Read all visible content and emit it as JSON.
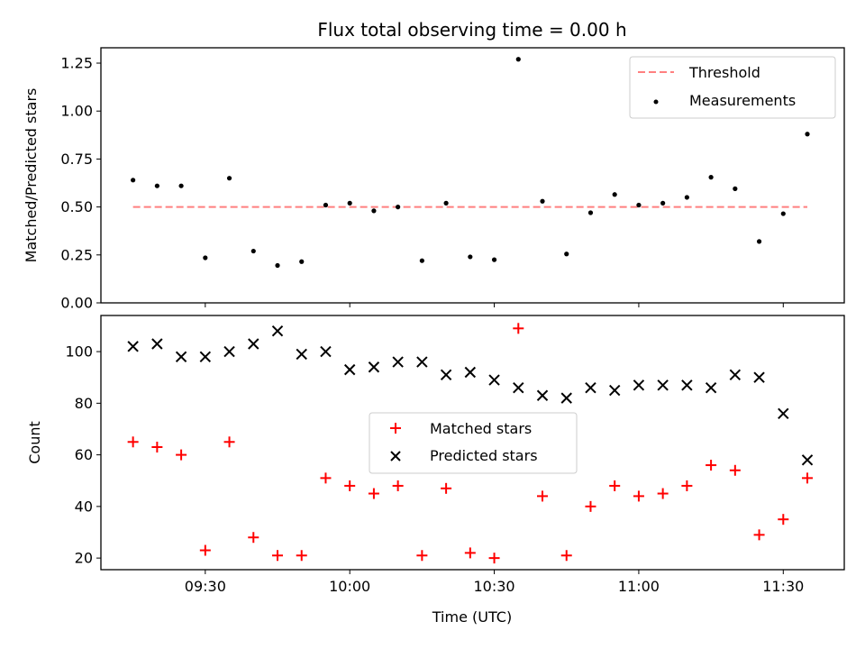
{
  "chart_data": {
    "title": "Flux total observing time = 0.00 h",
    "xlabel": "Time (UTC)",
    "xlim": [
      "09:08:20",
      "11:42:40"
    ],
    "x_ticks": [
      "09:30",
      "10:00",
      "10:30",
      "11:00",
      "11:30"
    ],
    "times": [
      "09:15",
      "09:20",
      "09:25",
      "09:30",
      "09:35",
      "09:40",
      "09:45",
      "09:50",
      "09:55",
      "10:00",
      "10:05",
      "10:10",
      "10:15",
      "10:20",
      "10:25",
      "10:30",
      "10:35",
      "10:40",
      "10:45",
      "10:50",
      "10:55",
      "11:00",
      "11:05",
      "11:10",
      "11:15",
      "11:20",
      "11:25",
      "11:30",
      "11:35"
    ],
    "panels": [
      {
        "type": "scatter",
        "ylabel": "Matched/Predicted stars",
        "ylim": [
          0,
          1.33
        ],
        "y_ticks": [
          "0.00",
          "0.25",
          "0.50",
          "0.75",
          "1.00",
          "1.25"
        ],
        "legend_position": "upper-right",
        "series": [
          {
            "name": "Threshold",
            "kind": "dashed-line",
            "color": "#ff7f7f",
            "x_start": "09:15",
            "x_end": "11:35",
            "value": 0.5
          },
          {
            "name": "Measurements",
            "kind": "dot",
            "color": "#000000",
            "values": [
              0.64,
              0.61,
              0.61,
              0.235,
              0.65,
              0.27,
              0.195,
              0.215,
              0.51,
              0.52,
              0.48,
              0.5,
              0.22,
              0.52,
              0.24,
              0.225,
              1.27,
              0.53,
              0.255,
              0.47,
              0.565,
              0.51,
              0.52,
              0.55,
              0.655,
              0.595,
              0.32,
              0.465,
              0.88
            ]
          }
        ]
      },
      {
        "type": "scatter",
        "ylabel": "Count",
        "ylim": [
          15.5,
          114
        ],
        "y_ticks": [
          "20",
          "40",
          "60",
          "80",
          "100"
        ],
        "legend_position": "center",
        "series": [
          {
            "name": "Matched stars",
            "marker": "plus",
            "color": "#ff0000",
            "values": [
              65,
              63,
              60,
              23,
              65,
              28,
              21,
              21,
              51,
              48,
              45,
              48,
              21,
              47,
              22,
              20,
              109,
              44,
              21,
              40,
              48,
              44,
              45,
              48,
              56,
              54,
              29,
              35,
              51
            ]
          },
          {
            "name": "Predicted stars",
            "marker": "x",
            "color": "#000000",
            "values": [
              102,
              103,
              98,
              98,
              100,
              103,
              108,
              99,
              100,
              93,
              94,
              96,
              96,
              91,
              92,
              89,
              86,
              83,
              82,
              86,
              85,
              87,
              87,
              87,
              86,
              91,
              90,
              76,
              58
            ]
          }
        ]
      }
    ]
  }
}
